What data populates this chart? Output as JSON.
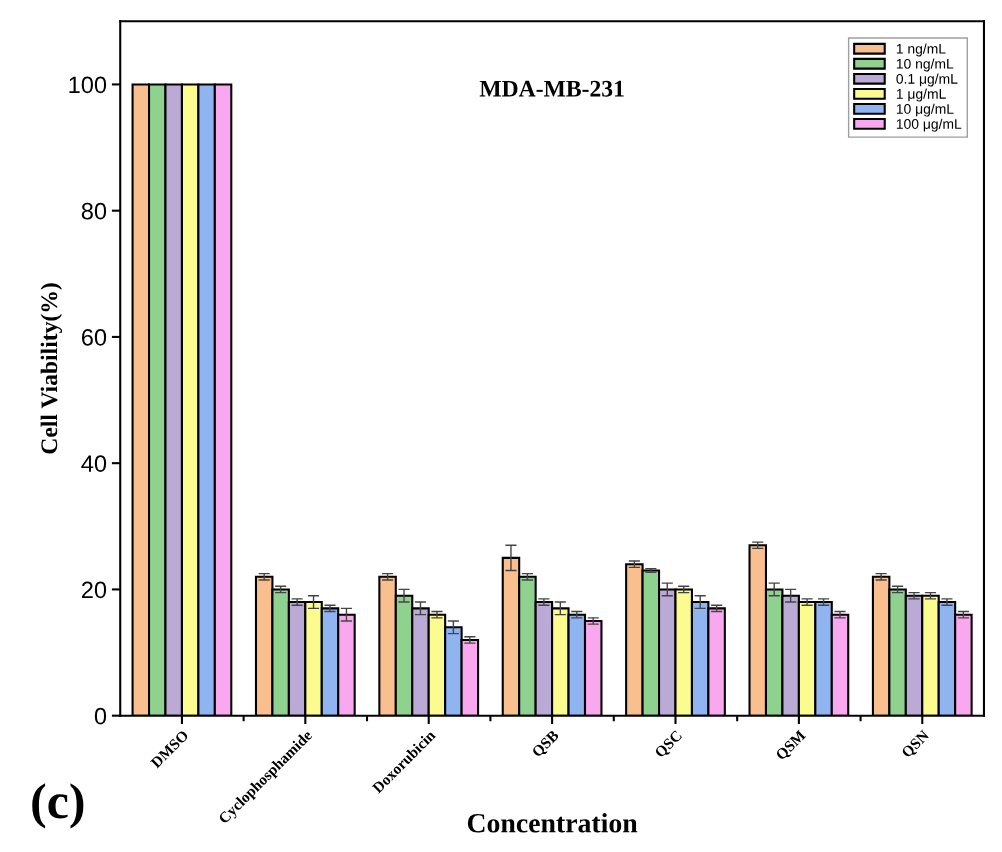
{
  "chart_data": {
    "type": "bar",
    "title": "MDA-MB-231",
    "xlabel": "Concentration",
    "ylabel": "Cell Viability(%)",
    "categories": [
      "DMSO",
      "Cyclophosphamide",
      "Doxorubicin",
      "QSB",
      "QSC",
      "QSM",
      "QSN"
    ],
    "series": [
      {
        "name": "1 ng/mL",
        "color": "#f9bf8f",
        "values": [
          100,
          22,
          22,
          25,
          24,
          27,
          22
        ],
        "errors": [
          null,
          0.5,
          0.5,
          2,
          0.5,
          0.5,
          0.5
        ]
      },
      {
        "name": "10 ng/mL",
        "color": "#8fd18f",
        "values": [
          100,
          20,
          19,
          22,
          23,
          20,
          20
        ],
        "errors": [
          null,
          0.5,
          1,
          0.5,
          0.3,
          1,
          0.5
        ]
      },
      {
        "name": "0.1 μg/mL",
        "color": "#bba9d6",
        "values": [
          100,
          18,
          17,
          18,
          20,
          19,
          19
        ],
        "errors": [
          null,
          0.5,
          1,
          0.5,
          1,
          1,
          0.5
        ]
      },
      {
        "name": "1 μg/mL",
        "color": "#fbfb8f",
        "values": [
          100,
          18,
          16,
          17,
          20,
          18,
          19
        ],
        "errors": [
          null,
          1,
          0.5,
          1,
          0.5,
          0.5,
          0.5
        ]
      },
      {
        "name": "10 μg/mL",
        "color": "#8fb4f0",
        "values": [
          100,
          17,
          14,
          16,
          18,
          18,
          18
        ],
        "errors": [
          null,
          0.5,
          1,
          0.5,
          1,
          0.5,
          0.5
        ]
      },
      {
        "name": "100 μg/mL",
        "color": "#f9a8f0",
        "values": [
          100,
          16,
          12,
          15,
          17,
          16,
          16
        ],
        "errors": [
          null,
          1,
          0.5,
          0.5,
          0.5,
          0.5,
          0.5
        ]
      }
    ],
    "ylim": [
      0,
      110
    ],
    "yticks": [
      0,
      20,
      40,
      60,
      80,
      100
    ],
    "grid": false,
    "legend": "top right",
    "annotations": [
      "(c)"
    ]
  }
}
